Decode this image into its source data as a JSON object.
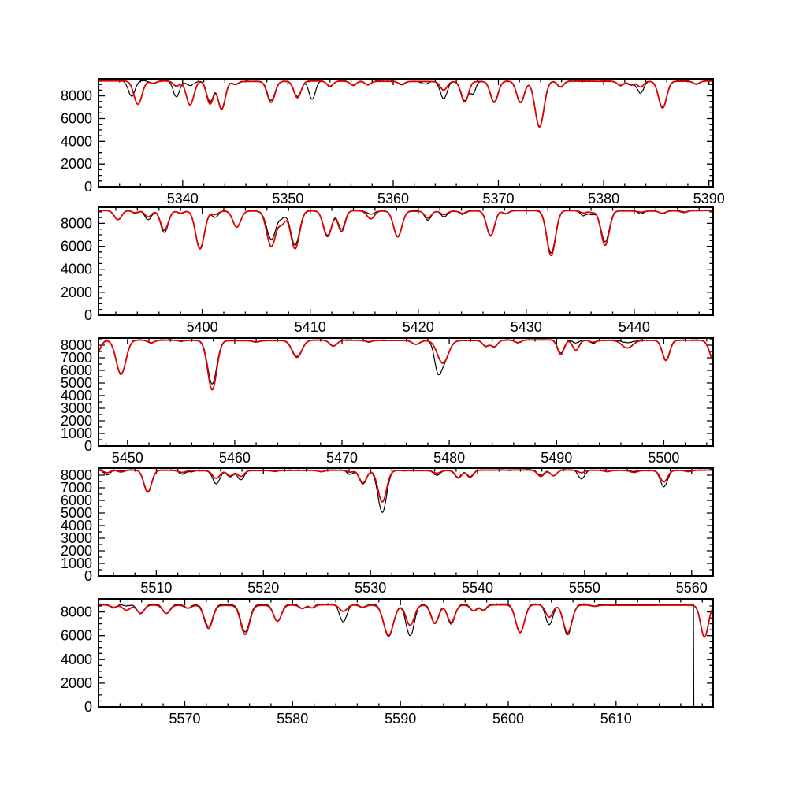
{
  "figure": {
    "title": "",
    "background": "#ffffff",
    "colors": {
      "observed": "#000000",
      "fit": "#dd0000",
      "axis": "#000000"
    }
  },
  "chart_data": [
    {
      "type": "line",
      "panel": 1,
      "title": "",
      "xlabel": "",
      "ylabel": "",
      "xlim": [
        5332.0,
        5390.4
      ],
      "ylim": [
        0,
        9500
      ],
      "x_major_ticks": [
        5340,
        5350,
        5360,
        5370,
        5380,
        5390
      ],
      "x_tick_labels": [
        "5340",
        "5350",
        "5360",
        "5370",
        "5380",
        "5390"
      ],
      "x_minor_step": 2,
      "y_major_ticks": [
        0,
        2000,
        4000,
        6000,
        8000
      ],
      "y_tick_labels": [
        "0",
        "2000",
        "4000",
        "6000",
        "8000"
      ],
      "y_minor_step": 500,
      "continuum": 9300,
      "red_offset": -15,
      "noise_amp": 45,
      "lines": [
        [
          5335.15,
          7950,
          null,
          0.32
        ],
        [
          5335.75,
          null,
          7250,
          0.38
        ],
        [
          5337.2,
          9050,
          9100,
          0.3
        ],
        [
          5339.4,
          7900,
          8850,
          0.3
        ],
        [
          5340.7,
          8900,
          7200,
          0.36
        ],
        [
          5342.6,
          7500,
          7300,
          0.32
        ],
        [
          5343.7,
          6900,
          6850,
          0.34
        ],
        [
          5345.0,
          9000,
          9050,
          0.3
        ],
        [
          5348.4,
          7600,
          7450,
          0.36
        ],
        [
          5350.9,
          7950,
          7850,
          0.34
        ],
        [
          5352.3,
          7700,
          null,
          0.3
        ],
        [
          5354.0,
          8800,
          8850,
          0.3
        ],
        [
          5356.2,
          8900,
          8950,
          0.3
        ],
        [
          5357.6,
          8950,
          9000,
          0.28
        ],
        [
          5360.8,
          9000,
          9050,
          0.3
        ],
        [
          5363.0,
          9050,
          null,
          0.3
        ],
        [
          5364.8,
          7800,
          8550,
          0.32
        ],
        [
          5366.8,
          7600,
          7500,
          0.34
        ],
        [
          5367.6,
          8300,
          null,
          0.25
        ],
        [
          5369.6,
          7500,
          7450,
          0.36
        ],
        [
          5372.1,
          7450,
          7400,
          0.36
        ],
        [
          5373.9,
          5300,
          5250,
          0.42
        ],
        [
          5375.9,
          8750,
          8800,
          0.3
        ],
        [
          5381.6,
          8900,
          8950,
          0.3
        ],
        [
          5382.6,
          8950,
          9000,
          0.28
        ],
        [
          5383.5,
          8250,
          8800,
          0.3
        ],
        [
          5385.6,
          7000,
          6950,
          0.38
        ],
        [
          5388.8,
          9000,
          9050,
          0.3
        ]
      ]
    },
    {
      "type": "line",
      "panel": 2,
      "title": "",
      "xlabel": "",
      "ylabel": "",
      "xlim": [
        5390.4,
        5447.3
      ],
      "ylim": [
        0,
        9400
      ],
      "x_major_ticks": [
        5400,
        5410,
        5420,
        5430,
        5440
      ],
      "x_tick_labels": [
        "5400",
        "5410",
        "5420",
        "5430",
        "5440"
      ],
      "x_minor_step": 2,
      "y_major_ticks": [
        0,
        2000,
        4000,
        6000,
        8000
      ],
      "y_tick_labels": [
        "0",
        "2000",
        "4000",
        "6000",
        "8000"
      ],
      "y_minor_step": 500,
      "continuum": 9100,
      "red_offset": -15,
      "noise_amp": 45,
      "lines": [
        [
          5392.2,
          8300,
          8300,
          0.34
        ],
        [
          5393.8,
          8850,
          8900,
          0.3
        ],
        [
          5395.0,
          8300,
          8550,
          0.32
        ],
        [
          5396.5,
          7200,
          7400,
          0.36
        ],
        [
          5398.0,
          8850,
          8900,
          0.3
        ],
        [
          5399.8,
          5850,
          5800,
          0.4
        ],
        [
          5401.2,
          8550,
          8800,
          0.3
        ],
        [
          5403.2,
          7700,
          7700,
          0.36
        ],
        [
          5406.4,
          6600,
          6000,
          0.42
        ],
        [
          5407.4,
          8600,
          8100,
          0.3
        ],
        [
          5408.6,
          6100,
          5800,
          0.4
        ],
        [
          5411.6,
          6950,
          6850,
          0.38
        ],
        [
          5412.9,
          7500,
          7300,
          0.32
        ],
        [
          5415.6,
          8800,
          8400,
          0.34
        ],
        [
          5418.1,
          6900,
          6850,
          0.38
        ],
        [
          5420.9,
          8300,
          8500,
          0.3
        ],
        [
          5422.4,
          8600,
          8800,
          0.3
        ],
        [
          5424.1,
          8800,
          8900,
          0.28
        ],
        [
          5426.7,
          6950,
          6900,
          0.36
        ],
        [
          5428.1,
          8800,
          8850,
          0.28
        ],
        [
          5432.3,
          5400,
          5200,
          0.4
        ],
        [
          5435.3,
          8650,
          8900,
          0.3
        ],
        [
          5436.1,
          8750,
          8950,
          0.26
        ],
        [
          5437.3,
          6400,
          6100,
          0.38
        ],
        [
          5440.6,
          8850,
          9000,
          0.3
        ],
        [
          5442.6,
          8850,
          8900,
          0.3
        ],
        [
          5444.6,
          9000,
          8950,
          0.3
        ]
      ]
    },
    {
      "type": "line",
      "panel": 3,
      "title": "",
      "xlabel": "",
      "ylabel": "",
      "xlim": [
        5447.3,
        5504.6
      ],
      "ylim": [
        0,
        8560
      ],
      "x_major_ticks": [
        5450,
        5460,
        5470,
        5480,
        5490,
        5500
      ],
      "x_tick_labels": [
        "5450",
        "5460",
        "5470",
        "5480",
        "5490",
        "5500"
      ],
      "x_minor_step": 2,
      "y_major_ticks": [
        0,
        1000,
        2000,
        3000,
        4000,
        5000,
        6000,
        7000,
        8000
      ],
      "y_tick_labels": [
        "0",
        "1000",
        "2000",
        "3000",
        "4000",
        "5000",
        "6000",
        "7000",
        "8000"
      ],
      "y_minor_step": 500,
      "continuum": 8400,
      "red_offset": -20,
      "noise_amp": 38,
      "lines": [
        [
          5446.7,
          6300,
          6300,
          0.5
        ],
        [
          5449.4,
          5650,
          5700,
          0.45
        ],
        [
          5452.2,
          8150,
          8200,
          0.32
        ],
        [
          5455.0,
          8300,
          8350,
          0.3
        ],
        [
          5457.9,
          4950,
          4500,
          0.42
        ],
        [
          5462.0,
          8250,
          8300,
          0.3
        ],
        [
          5465.8,
          7100,
          7050,
          0.45
        ],
        [
          5469.2,
          7900,
          7950,
          0.35
        ],
        [
          5472.5,
          8250,
          8300,
          0.3
        ],
        [
          5476.9,
          8100,
          8100,
          0.35
        ],
        [
          5478.9,
          6900,
          null,
          0.3
        ],
        [
          5479.4,
          6600,
          6600,
          0.5
        ],
        [
          5483.4,
          7900,
          7950,
          0.3
        ],
        [
          5484.2,
          7850,
          7900,
          0.3
        ],
        [
          5486.4,
          8150,
          8200,
          0.3
        ],
        [
          5490.4,
          7350,
          7250,
          0.3
        ],
        [
          5491.8,
          8150,
          7600,
          0.3
        ],
        [
          5493.4,
          8150,
          8250,
          0.3
        ],
        [
          5496.6,
          8200,
          7800,
          0.5
        ],
        [
          5500.2,
          6850,
          6800,
          0.34
        ],
        [
          5504.7,
          6700,
          6700,
          0.4
        ]
      ]
    },
    {
      "type": "line",
      "panel": 4,
      "title": "",
      "xlabel": "",
      "ylabel": "",
      "xlim": [
        5504.6,
        5562.0
      ],
      "ylim": [
        0,
        8560
      ],
      "x_major_ticks": [
        5510,
        5520,
        5530,
        5540,
        5550,
        5560
      ],
      "x_tick_labels": [
        "5510",
        "5520",
        "5530",
        "5540",
        "5550",
        "5560"
      ],
      "x_minor_step": 2,
      "y_major_ticks": [
        0,
        1000,
        2000,
        3000,
        4000,
        5000,
        6000,
        7000,
        8000
      ],
      "y_tick_labels": [
        "0",
        "1000",
        "2000",
        "3000",
        "4000",
        "5000",
        "6000",
        "7000",
        "8000"
      ],
      "y_minor_step": 500,
      "continuum": 8400,
      "red_offset": -20,
      "noise_amp": 38,
      "lines": [
        [
          5505.4,
          8000,
          8200,
          0.3
        ],
        [
          5506.7,
          8300,
          8250,
          0.3
        ],
        [
          5509.2,
          6700,
          6650,
          0.36
        ],
        [
          5512.4,
          8100,
          8250,
          0.32
        ],
        [
          5513.3,
          8300,
          8400,
          0.28
        ],
        [
          5515.6,
          7350,
          7800,
          0.34
        ],
        [
          5516.9,
          7900,
          8000,
          0.3
        ],
        [
          5517.9,
          7650,
          7950,
          0.3
        ],
        [
          5521.0,
          8300,
          8350,
          0.3
        ],
        [
          5525.4,
          8250,
          8300,
          0.32
        ],
        [
          5528.1,
          8050,
          8250,
          0.3
        ],
        [
          5529.3,
          7300,
          7400,
          0.34
        ],
        [
          5531.1,
          5050,
          5900,
          0.4
        ],
        [
          5533.3,
          8350,
          8400,
          0.28
        ],
        [
          5536.2,
          8000,
          8200,
          0.32
        ],
        [
          5538.2,
          7850,
          7800,
          0.3
        ],
        [
          5539.3,
          7900,
          7850,
          0.3
        ],
        [
          5543.0,
          8350,
          8400,
          0.28
        ],
        [
          5545.9,
          7950,
          7900,
          0.32
        ],
        [
          5547.1,
          7900,
          7950,
          0.3
        ],
        [
          5549.7,
          7700,
          8200,
          0.3
        ],
        [
          5552.1,
          8400,
          8300,
          0.3
        ],
        [
          5554.6,
          8300,
          8250,
          0.3
        ],
        [
          5557.4,
          7100,
          7500,
          0.34
        ],
        [
          5559.7,
          8350,
          8300,
          0.3
        ]
      ]
    },
    {
      "type": "line",
      "panel": 5,
      "title": "",
      "xlabel": "",
      "ylabel": "",
      "xlim": [
        5562.0,
        5619.0
      ],
      "ylim": [
        0,
        9100
      ],
      "x_major_ticks": [
        5570,
        5580,
        5590,
        5600,
        5610
      ],
      "x_tick_labels": [
        "5570",
        "5580",
        "5590",
        "5600",
        "5610"
      ],
      "x_minor_step": 2,
      "y_major_ticks": [
        0,
        2000,
        4000,
        6000,
        8000
      ],
      "y_tick_labels": [
        "0",
        "2000",
        "4000",
        "6000",
        "8000"
      ],
      "y_minor_step": 500,
      "continuum": 8650,
      "red_offset": -70,
      "noise_amp": 42,
      "black_gap_start": 5617.2,
      "lines": [
        [
          5563.4,
          8300,
          8450,
          0.3
        ],
        [
          5564.6,
          8500,
          8200,
          0.35
        ],
        [
          5565.9,
          7850,
          7950,
          0.34
        ],
        [
          5568.3,
          7900,
          7950,
          0.34
        ],
        [
          5570.3,
          8350,
          8400,
          0.3
        ],
        [
          5572.2,
          6800,
          6700,
          0.38
        ],
        [
          5575.6,
          6350,
          6200,
          0.4
        ],
        [
          5578.6,
          7250,
          7300,
          0.36
        ],
        [
          5580.9,
          8300,
          8350,
          0.3
        ],
        [
          5581.8,
          8350,
          8400,
          0.28
        ],
        [
          5584.7,
          7150,
          8100,
          0.34
        ],
        [
          5586.5,
          8400,
          8450,
          0.3
        ],
        [
          5588.9,
          5950,
          6100,
          0.45
        ],
        [
          5590.9,
          6000,
          6950,
          0.38
        ],
        [
          5593.2,
          7100,
          7100,
          0.35
        ],
        [
          5594.7,
          7000,
          7200,
          0.35
        ],
        [
          5596.8,
          8100,
          8150,
          0.3
        ],
        [
          5597.7,
          8150,
          8200,
          0.28
        ],
        [
          5601.1,
          6250,
          6300,
          0.4
        ],
        [
          5603.8,
          6900,
          7600,
          0.34
        ],
        [
          5605.5,
          6050,
          6300,
          0.4
        ],
        [
          5608.0,
          8500,
          8550,
          0.3
        ],
        [
          5618.2,
          null,
          5950,
          0.35
        ]
      ]
    }
  ]
}
